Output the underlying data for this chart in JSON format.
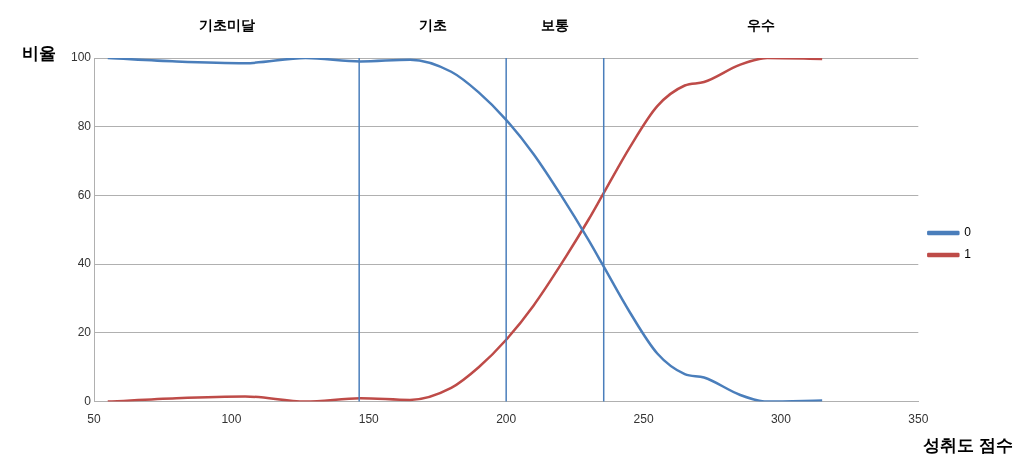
{
  "chart_data": {
    "type": "line",
    "xlabel": "성취도 점수",
    "ylabel": "비율",
    "x": [
      55,
      80,
      105,
      127,
      147,
      165,
      180,
      190,
      200,
      210,
      220,
      230,
      235,
      245,
      255,
      265,
      272,
      285,
      295,
      315
    ],
    "series": [
      {
        "name": "0",
        "color": "#4a7ebb",
        "values": [
          100,
          99,
          98.5,
          100,
          99,
          99.5,
          96,
          90,
          82,
          72,
          60,
          47,
          40,
          26,
          14,
          8,
          7,
          2,
          0,
          0.3
        ]
      },
      {
        "name": "1",
        "color": "#be4b48",
        "values": [
          0,
          1,
          1.5,
          0,
          1,
          0.5,
          4,
          10,
          18,
          28,
          40,
          53,
          60,
          74,
          86,
          92,
          93,
          98,
          100,
          99.7
        ]
      }
    ],
    "xlim": [
      50,
      350
    ],
    "xticks": [
      50,
      100,
      150,
      200,
      250,
      300,
      350
    ],
    "ylim": [
      0,
      100
    ],
    "yticks": [
      0,
      20,
      40,
      60,
      80,
      100
    ],
    "ref_lines": [
      {
        "axis": "x",
        "value": 146.5,
        "color": "#4a7ebb"
      },
      {
        "axis": "x",
        "value": 200,
        "color": "#4a7ebb"
      },
      {
        "axis": "x",
        "value": 235.5,
        "color": "#4a7ebb"
      }
    ],
    "annotations": [
      "기초미달",
      "기초",
      "보통",
      "우수"
    ],
    "grid": "y",
    "legend": "right",
    "marker": "none",
    "line_style": "solid"
  }
}
